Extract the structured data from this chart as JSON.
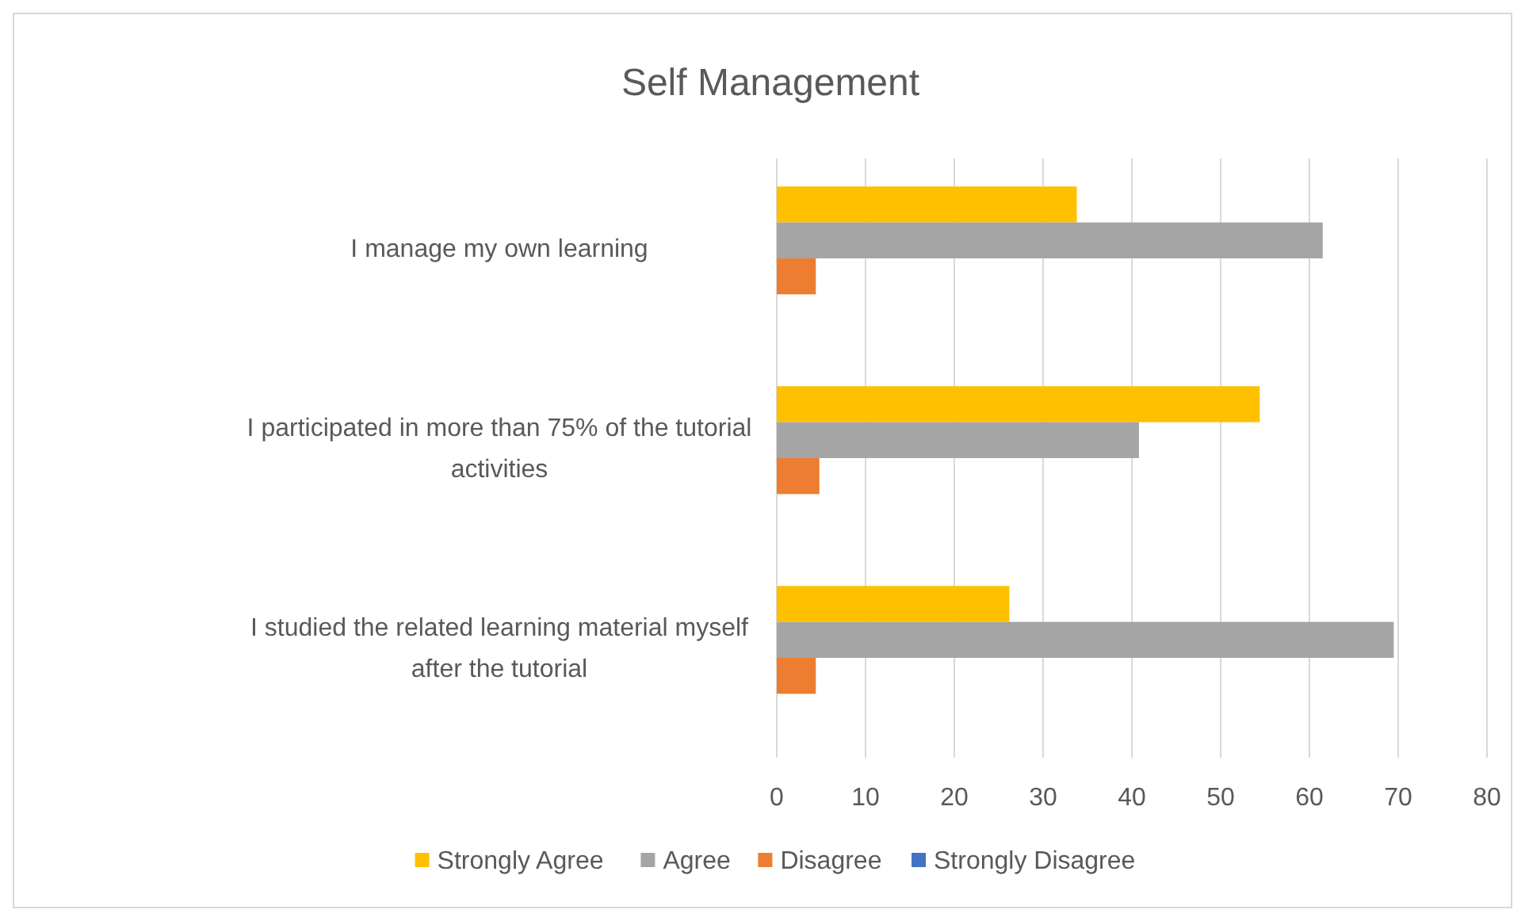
{
  "chart_data": {
    "type": "bar",
    "orientation": "horizontal",
    "title": "Self Management",
    "categories": [
      "I manage my own learning",
      "I participated in more than 75% of the tutorial activities",
      "I studied the related learning material myself after the tutorial"
    ],
    "series": [
      {
        "name": "Strongly Agree",
        "color": "#ffc000",
        "values": [
          33.8,
          54.4,
          26.2
        ]
      },
      {
        "name": "Agree",
        "color": "#a5a5a5",
        "values": [
          61.5,
          40.8,
          69.5
        ]
      },
      {
        "name": "Disagree",
        "color": "#ed7d31",
        "values": [
          4.4,
          4.8,
          4.4
        ]
      },
      {
        "name": "Strongly Disagree",
        "color": "#4472c4",
        "values": [
          0,
          0,
          0
        ]
      }
    ],
    "xlim": [
      0,
      80
    ],
    "xticks": [
      0,
      10,
      20,
      30,
      40,
      50,
      60,
      70,
      80
    ],
    "grid": "x",
    "legend": "bottom"
  }
}
